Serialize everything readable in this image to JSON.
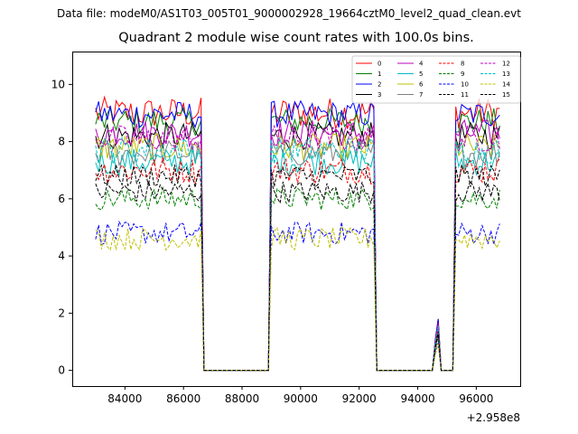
{
  "figure": {
    "suptitle": "Data file: modeM0/AS1T03_005T01_9000002928_19664cztM0_level2_quad_clean.evt"
  },
  "chart_data": {
    "type": "line",
    "title": "Quadrant 2 module wise count rates with 100.0s bins.",
    "xlabel": "",
    "ylabel": "",
    "x_offset_label": "+2.958e8",
    "xlim": [
      82200,
      97500
    ],
    "ylim": [
      -0.55,
      11.15
    ],
    "xticks": [
      84000,
      86000,
      88000,
      90000,
      92000,
      94000,
      96000
    ],
    "xtick_labels": [
      "84000",
      "86000",
      "88000",
      "90000",
      "92000",
      "94000",
      "96000"
    ],
    "yticks": [
      0,
      2,
      4,
      6,
      8,
      10
    ],
    "ytick_labels": [
      "0",
      "2",
      "4",
      "6",
      "8",
      "10"
    ],
    "grid": false,
    "legend_position": "top-right",
    "legend_columns": 4,
    "bin_seconds": 100,
    "segments": [
      {
        "start": 83000,
        "end": 86600
      },
      {
        "start": 89000,
        "end": 92500
      },
      {
        "start": 94600,
        "end": 94700
      },
      {
        "start": 95300,
        "end": 96800
      }
    ],
    "gap_value": 0.0,
    "series": [
      {
        "name": "0",
        "color": "#ff0000",
        "dash": "solid",
        "mean": 9.0,
        "amp": 0.35
      },
      {
        "name": "1",
        "color": "#008000",
        "dash": "solid",
        "mean": 8.7,
        "amp": 0.3
      },
      {
        "name": "2",
        "color": "#0000ff",
        "dash": "solid",
        "mean": 8.95,
        "amp": 0.3
      },
      {
        "name": "3",
        "color": "#000000",
        "dash": "solid",
        "mean": 8.2,
        "amp": 0.3
      },
      {
        "name": "4",
        "color": "#bf00bf",
        "dash": "solid",
        "mean": 8.3,
        "amp": 0.3
      },
      {
        "name": "5",
        "color": "#00bfbf",
        "dash": "solid",
        "mean": 7.3,
        "amp": 0.3
      },
      {
        "name": "6",
        "color": "#bfbf00",
        "dash": "solid",
        "mean": 7.8,
        "amp": 0.3
      },
      {
        "name": "7",
        "color": "#808080",
        "dash": "solid",
        "mean": 7.6,
        "amp": 0.3
      },
      {
        "name": "8",
        "color": "#ff0000",
        "dash": "dashed",
        "mean": 7.0,
        "amp": 0.3
      },
      {
        "name": "9",
        "color": "#008000",
        "dash": "dashed",
        "mean": 6.0,
        "amp": 0.25
      },
      {
        "name": "10",
        "color": "#0000ff",
        "dash": "dashed",
        "mean": 4.8,
        "amp": 0.25
      },
      {
        "name": "11",
        "color": "#000000",
        "dash": "dashed",
        "mean": 6.25,
        "amp": 0.25
      },
      {
        "name": "12",
        "color": "#bf00bf",
        "dash": "dashed",
        "mean": 8.1,
        "amp": 0.3
      },
      {
        "name": "13",
        "color": "#00bfbf",
        "dash": "dashed",
        "mean": 7.7,
        "amp": 0.3
      },
      {
        "name": "14",
        "color": "#bfbf00",
        "dash": "dashed",
        "mean": 4.6,
        "amp": 0.25
      },
      {
        "name": "15",
        "color": "#000000",
        "dash": "dashed",
        "mean": 6.8,
        "amp": 0.25
      }
    ]
  }
}
